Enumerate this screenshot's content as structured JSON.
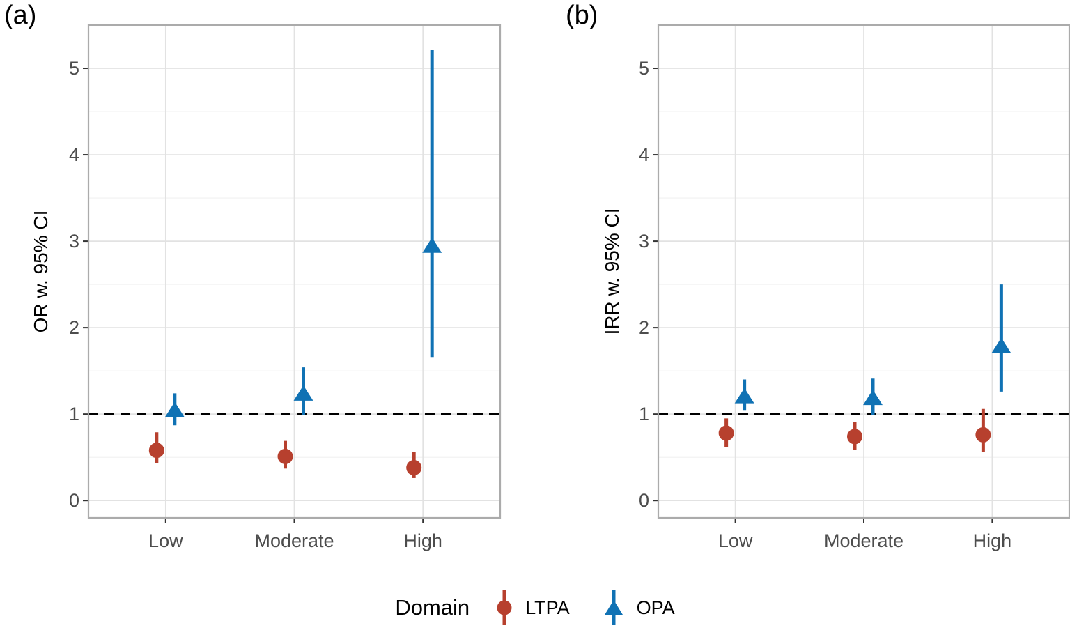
{
  "chart_data": [
    {
      "id": "a",
      "type": "scatter",
      "panel_label": "(a)",
      "ylabel": "OR w. 95% CI",
      "xlabel": "",
      "categories": [
        "Low",
        "Moderate",
        "High"
      ],
      "yticks": [
        0,
        1,
        2,
        3,
        4,
        5
      ],
      "ytick_labels": [
        "0",
        "1",
        "2",
        "3",
        "4",
        "5"
      ],
      "ylim": [
        -0.2,
        5.5
      ],
      "ref_line": 1.0,
      "grid": "on",
      "series": [
        {
          "name": "LTPA",
          "marker": "circle",
          "color": "#B7402E",
          "points": [
            {
              "x": "Low",
              "y": 0.58,
              "lo": 0.43,
              "hi": 0.79
            },
            {
              "x": "Moderate",
              "y": 0.51,
              "lo": 0.37,
              "hi": 0.69
            },
            {
              "x": "High",
              "y": 0.38,
              "lo": 0.26,
              "hi": 0.56
            }
          ]
        },
        {
          "name": "OPA",
          "marker": "triangle",
          "color": "#1072B4",
          "points": [
            {
              "x": "Low",
              "y": 1.05,
              "lo": 0.87,
              "hi": 1.24
            },
            {
              "x": "Moderate",
              "y": 1.24,
              "lo": 0.99,
              "hi": 1.54
            },
            {
              "x": "High",
              "y": 2.95,
              "lo": 1.66,
              "hi": 5.21
            }
          ]
        }
      ]
    },
    {
      "id": "b",
      "type": "scatter",
      "panel_label": "(b)",
      "ylabel": "IRR w. 95% CI",
      "xlabel": "",
      "categories": [
        "Low",
        "Moderate",
        "High"
      ],
      "yticks": [
        0,
        1,
        2,
        3,
        4,
        5
      ],
      "ytick_labels": [
        "0",
        "1",
        "2",
        "3",
        "4",
        "5"
      ],
      "ylim": [
        -0.2,
        5.5
      ],
      "ref_line": 1.0,
      "grid": "on",
      "series": [
        {
          "name": "LTPA",
          "marker": "circle",
          "color": "#B7402E",
          "points": [
            {
              "x": "Low",
              "y": 0.78,
              "lo": 0.62,
              "hi": 0.95
            },
            {
              "x": "Moderate",
              "y": 0.74,
              "lo": 0.59,
              "hi": 0.91
            },
            {
              "x": "High",
              "y": 0.76,
              "lo": 0.56,
              "hi": 1.06
            }
          ]
        },
        {
          "name": "OPA",
          "marker": "triangle",
          "color": "#1072B4",
          "points": [
            {
              "x": "Low",
              "y": 1.21,
              "lo": 1.04,
              "hi": 1.4
            },
            {
              "x": "Moderate",
              "y": 1.19,
              "lo": 0.99,
              "hi": 1.41
            },
            {
              "x": "High",
              "y": 1.79,
              "lo": 1.26,
              "hi": 2.5
            }
          ]
        }
      ]
    }
  ],
  "legend": {
    "title": "Domain",
    "position": "bottom-center",
    "items": [
      {
        "label": "LTPA",
        "marker": "circle",
        "color": "#B7402E"
      },
      {
        "label": "OPA",
        "marker": "triangle",
        "color": "#1072B4"
      }
    ]
  },
  "colors": {
    "ltpa_red": "#B7402E",
    "opa_blue": "#1072B4",
    "grid_major": "#E2E2E2",
    "grid_minor": "#F1F1F1",
    "panel_border": "#ABABAB",
    "tick_mark": "#333333",
    "tick_label": "#4D4D4D",
    "reference_line": "#000000",
    "background": "#FFFFFF"
  }
}
